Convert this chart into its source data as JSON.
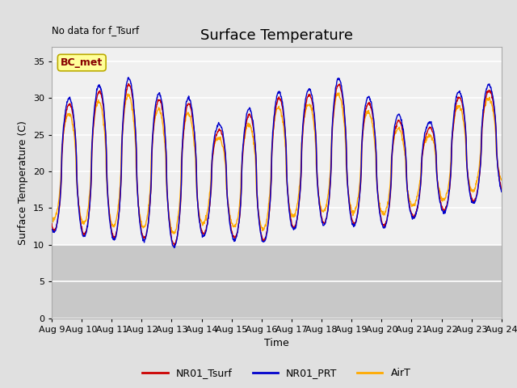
{
  "title": "Surface Temperature",
  "xlabel": "Time",
  "ylabel": "Surface Temperature (C)",
  "top_left_text": "No data for f_Tsurf",
  "annotation_text": "BC_met",
  "ylim": [
    0,
    37
  ],
  "yticks": [
    0,
    5,
    10,
    15,
    20,
    25,
    30,
    35
  ],
  "xstart": 9,
  "xend": 24,
  "xtick_labels": [
    "Aug 9",
    "Aug 10",
    "Aug 11",
    "Aug 12",
    "Aug 13",
    "Aug 14",
    "Aug 15",
    "Aug 16",
    "Aug 17",
    "Aug 18",
    "Aug 19",
    "Aug 20",
    "Aug 21",
    "Aug 22",
    "Aug 23",
    "Aug 24"
  ],
  "series_colors": [
    "#cc0000",
    "#0000cc",
    "#ffaa00"
  ],
  "series_names": [
    "NR01_Tsurf",
    "NR01_PRT",
    "AirT"
  ],
  "figure_bg": "#e0e0e0",
  "plot_bg_upper": "#f0f0f0",
  "plot_bg_lower": "#d8d8d8",
  "grid_color": "#ffffff",
  "annotation_bg": "#ffff99",
  "annotation_border": "#bbaa00",
  "annotation_text_color": "#880000",
  "title_fontsize": 13,
  "label_fontsize": 9,
  "tick_fontsize": 8,
  "legend_fontsize": 9
}
